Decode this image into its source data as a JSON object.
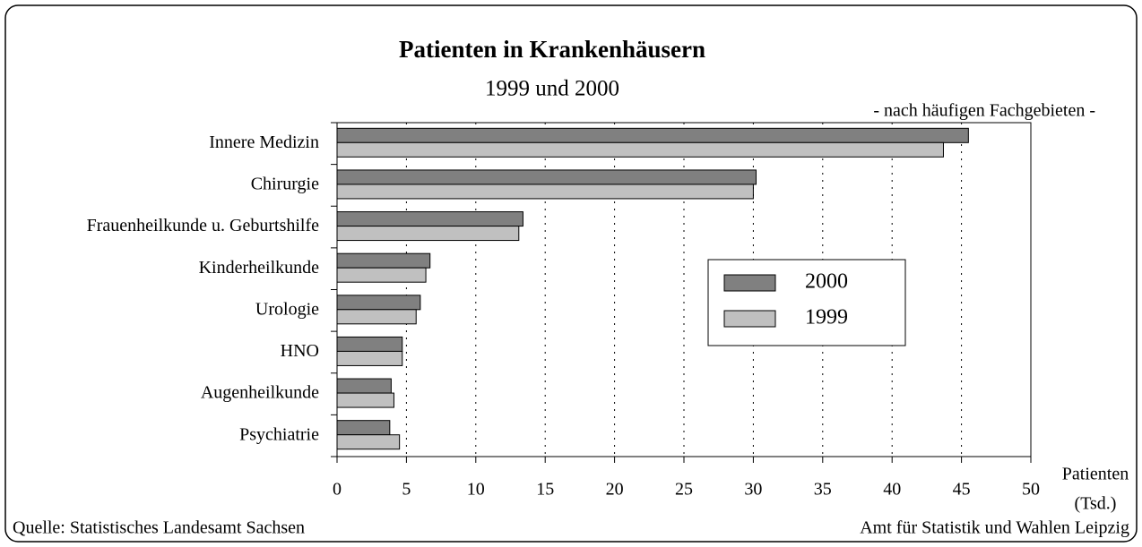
{
  "chart_data": {
    "type": "hbar",
    "title": "Patienten in Krankenhäusern",
    "subtitle": "1999 und 2000",
    "annotation": "- nach häufigen Fachgebieten -",
    "x_label": [
      "Patienten",
      "(Tsd.)"
    ],
    "source": "Quelle: Statistisches Landesamt Sachsen",
    "publisher": "Amt für Statistik und Wahlen Leipzig",
    "categories": [
      "Innere Medizin",
      "Chirurgie",
      "Frauenheilkunde u. Geburtshilfe",
      "Kinderheilkunde",
      "Urologie",
      "HNO",
      "Augenheilkunde",
      "Psychiatrie"
    ],
    "series": [
      {
        "name": "2000",
        "color": "#808080",
        "values": [
          45.5,
          30.2,
          13.4,
          6.7,
          6.0,
          4.7,
          3.9,
          3.8
        ]
      },
      {
        "name": "1999",
        "color": "#c0c0c0",
        "values": [
          43.7,
          30.0,
          13.1,
          6.4,
          5.7,
          4.7,
          4.1,
          4.5
        ]
      }
    ],
    "xlim": [
      0,
      50
    ],
    "xticks": [
      0,
      5,
      10,
      15,
      20,
      25,
      30,
      35,
      40,
      45,
      50
    ],
    "grid": true,
    "legend": "center-right"
  }
}
